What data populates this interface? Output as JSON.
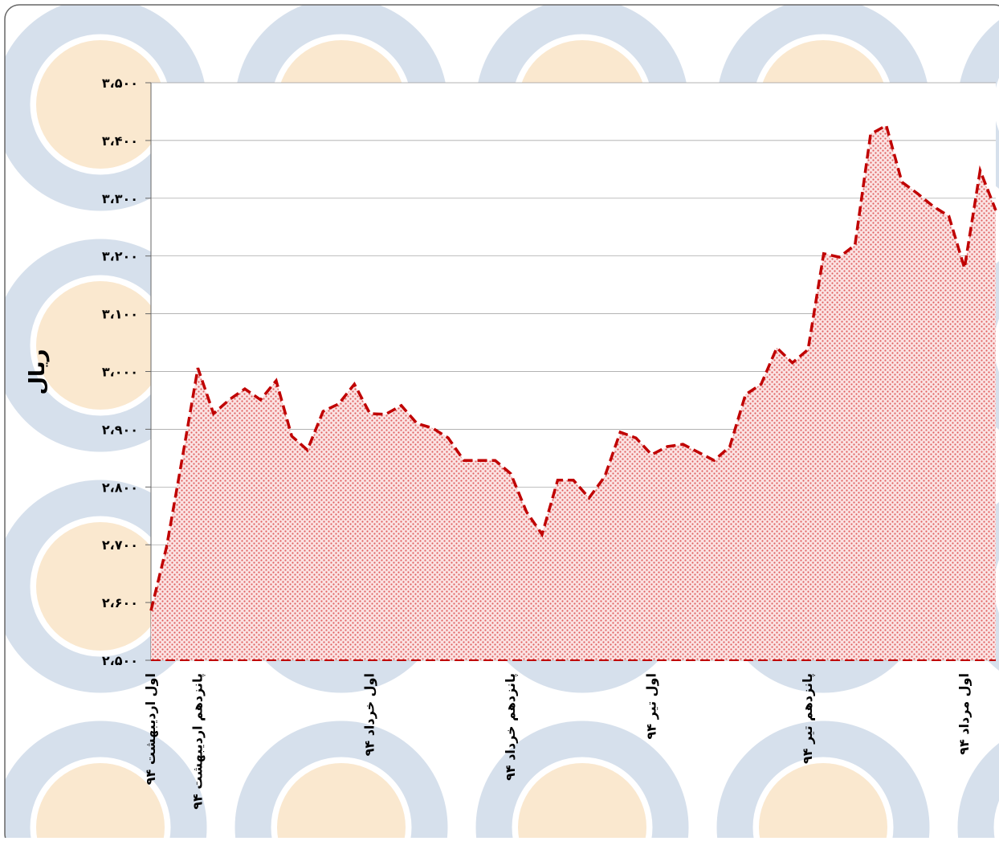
{
  "chart_data": {
    "type": "area",
    "y_label": "ریال",
    "categories": [
      "اول اردیبهشت ۹۴",
      null,
      null,
      "پانزدهم اردیبهشت ۹۴",
      null,
      null,
      null,
      null,
      null,
      null,
      null,
      null,
      null,
      null,
      "اول خرداد ۹۴",
      null,
      null,
      null,
      null,
      null,
      null,
      null,
      null,
      "پانزدهم خرداد ۹۴",
      null,
      null,
      null,
      null,
      null,
      null,
      null,
      null,
      "اول تیر ۹۴",
      null,
      null,
      null,
      null,
      null,
      null,
      null,
      null,
      null,
      "پانزدهم تیر ۹۴",
      null,
      null,
      null,
      null,
      null,
      null,
      null,
      null,
      null,
      "اول مرداد ۹۴",
      null,
      null
    ],
    "values": [
      2586,
      2697,
      2850,
      3006,
      2927,
      2951,
      2970,
      2951,
      2984,
      2888,
      2864,
      2931,
      2944,
      2978,
      2927,
      2926,
      2941,
      2910,
      2902,
      2885,
      2846,
      2846,
      2846,
      2823,
      2757,
      2718,
      2812,
      2812,
      2781,
      2818,
      2895,
      2885,
      2856,
      2870,
      2874,
      2860,
      2846,
      2870,
      2960,
      2978,
      3041,
      3015,
      3038,
      3204,
      3198,
      3219,
      3411,
      3426,
      3328,
      3308,
      3286,
      3269,
      3179,
      3348,
      3279
    ],
    "color": "#c00000",
    "ylim": [
      2500,
      3500
    ],
    "yticks": [
      {
        "value": 2500,
        "label": "۲،۵۰۰"
      },
      {
        "value": 2600,
        "label": "۲،۶۰۰"
      },
      {
        "value": 2700,
        "label": "۲،۷۰۰"
      },
      {
        "value": 2800,
        "label": "۲،۸۰۰"
      },
      {
        "value": 2900,
        "label": "۲،۹۰۰"
      },
      {
        "value": 3000,
        "label": "۳،۰۰۰"
      },
      {
        "value": 3100,
        "label": "۳،۱۰۰"
      },
      {
        "value": 3200,
        "label": "۳،۲۰۰"
      },
      {
        "value": 3300,
        "label": "۳،۳۰۰"
      },
      {
        "value": 3400,
        "label": "۳،۴۰۰"
      },
      {
        "value": 3500,
        "label": "۳،۵۰۰"
      }
    ],
    "grid": true
  }
}
